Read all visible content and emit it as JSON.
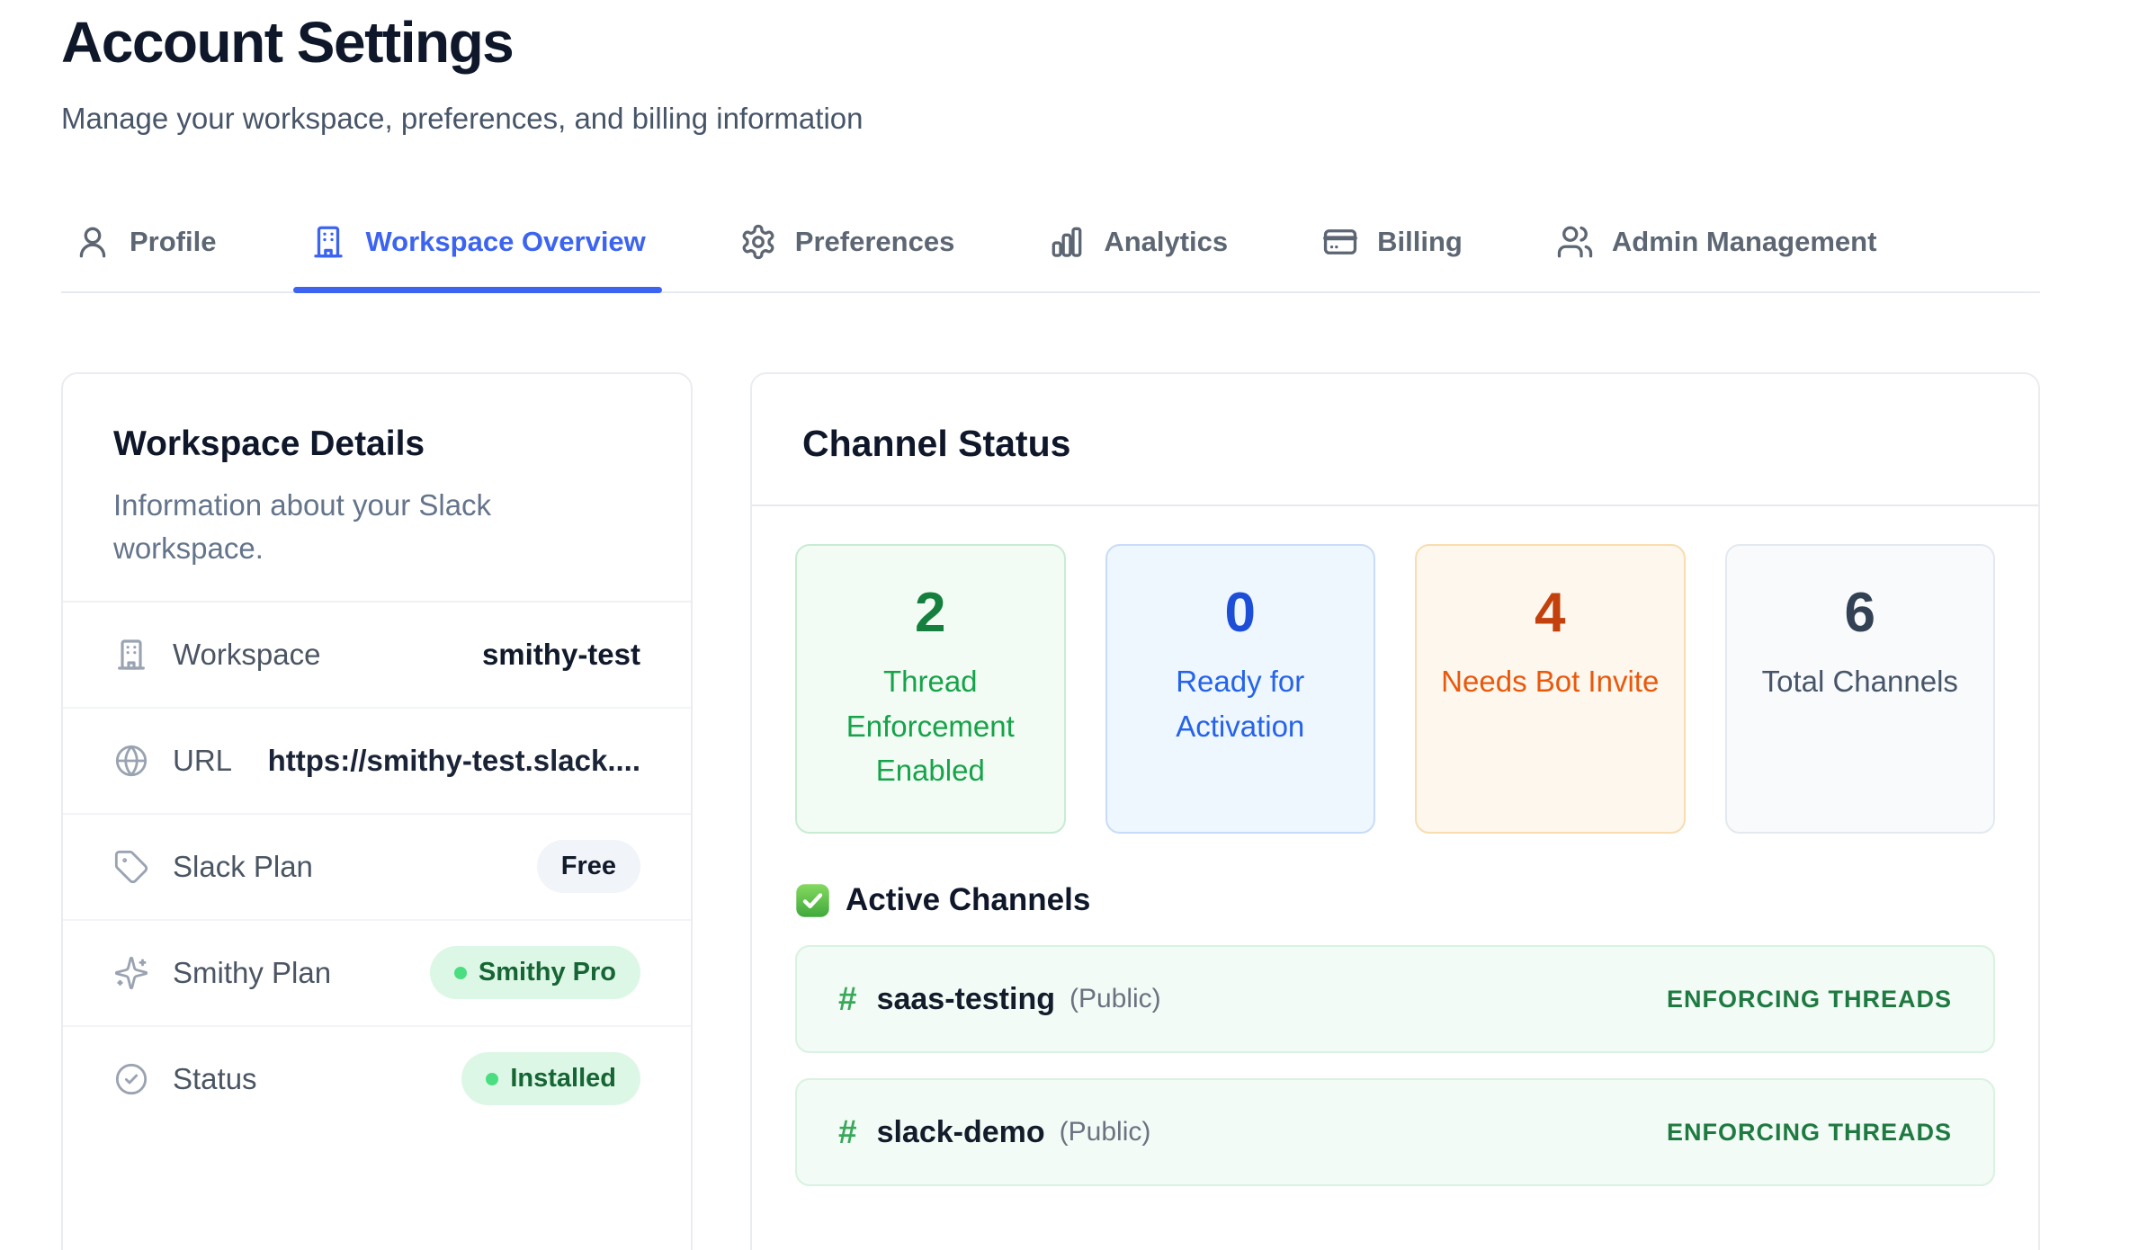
{
  "header": {
    "title": "Account Settings",
    "subtitle": "Manage your workspace, preferences, and billing information"
  },
  "tabs": [
    {
      "label": "Profile",
      "icon": "user-icon",
      "active": false
    },
    {
      "label": "Workspace Overview",
      "icon": "building-icon",
      "active": true
    },
    {
      "label": "Preferences",
      "icon": "gear-icon",
      "active": false
    },
    {
      "label": "Analytics",
      "icon": "bar-chart-icon",
      "active": false
    },
    {
      "label": "Billing",
      "icon": "credit-card-icon",
      "active": false
    },
    {
      "label": "Admin Management",
      "icon": "users-icon",
      "active": false
    }
  ],
  "workspace_details": {
    "title": "Workspace Details",
    "subtitle": "Information about your Slack workspace.",
    "rows": [
      {
        "icon": "building-icon",
        "label": "Workspace",
        "value": "smithy-test",
        "value_type": "text"
      },
      {
        "icon": "globe-icon",
        "label": "URL",
        "value": "https://smithy-test.slack....",
        "value_type": "url"
      },
      {
        "icon": "tag-icon",
        "label": "Slack Plan",
        "value": "Free",
        "value_type": "pill-gray"
      },
      {
        "icon": "sparkles-icon",
        "label": "Smithy Plan",
        "value": "Smithy Pro",
        "value_type": "pill-green"
      },
      {
        "icon": "check-circle-icon",
        "label": "Status",
        "value": "Installed",
        "value_type": "pill-green"
      }
    ]
  },
  "channel_status": {
    "title": "Channel Status",
    "stats": [
      {
        "value": "2",
        "label": "Thread Enforcement Enabled",
        "theme": "green"
      },
      {
        "value": "0",
        "label": "Ready for Activation",
        "theme": "blue"
      },
      {
        "value": "4",
        "label": "Needs Bot Invite",
        "theme": "orange"
      },
      {
        "value": "6",
        "label": "Total Channels",
        "theme": "slate"
      }
    ],
    "active_channels": {
      "icon": "check-badge-icon",
      "heading": "Active Channels",
      "channels": [
        {
          "hash": "#",
          "name": "saas-testing",
          "visibility": "(Public)",
          "status": "ENFORCING THREADS"
        },
        {
          "hash": "#",
          "name": "slack-demo",
          "visibility": "(Public)",
          "status": "ENFORCING THREADS"
        }
      ]
    }
  },
  "colors": {
    "accent_blue": "#3c64f0",
    "stat_green_number": "#15803d",
    "stat_blue_number": "#1d4ed8",
    "stat_orange_number": "#c2410c",
    "stat_slate_number": "#334155",
    "pill_green_bg": "#ddf7e6",
    "pill_green_text": "#166534",
    "channel_row_bg": "#f2fbf5",
    "enforcing_text": "#1e7a41",
    "hash_green": "#3aa85b"
  }
}
